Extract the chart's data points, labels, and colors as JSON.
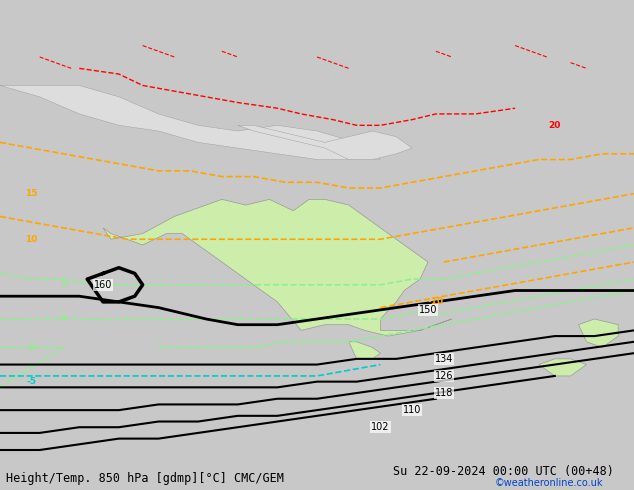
{
  "title_left": "Height/Temp. 850 hPa [gdmp][°C] CMC/GEM",
  "title_right": "Su 22-09-2024 00:00 UTC (00+48)",
  "watermark": "©weatheronline.co.uk",
  "background_color": "#d3d3d3",
  "land_color_warm": "#cceeaa",
  "land_color_cool": "#aabbee",
  "fig_width": 6.34,
  "fig_height": 4.9,
  "dpi": 100
}
